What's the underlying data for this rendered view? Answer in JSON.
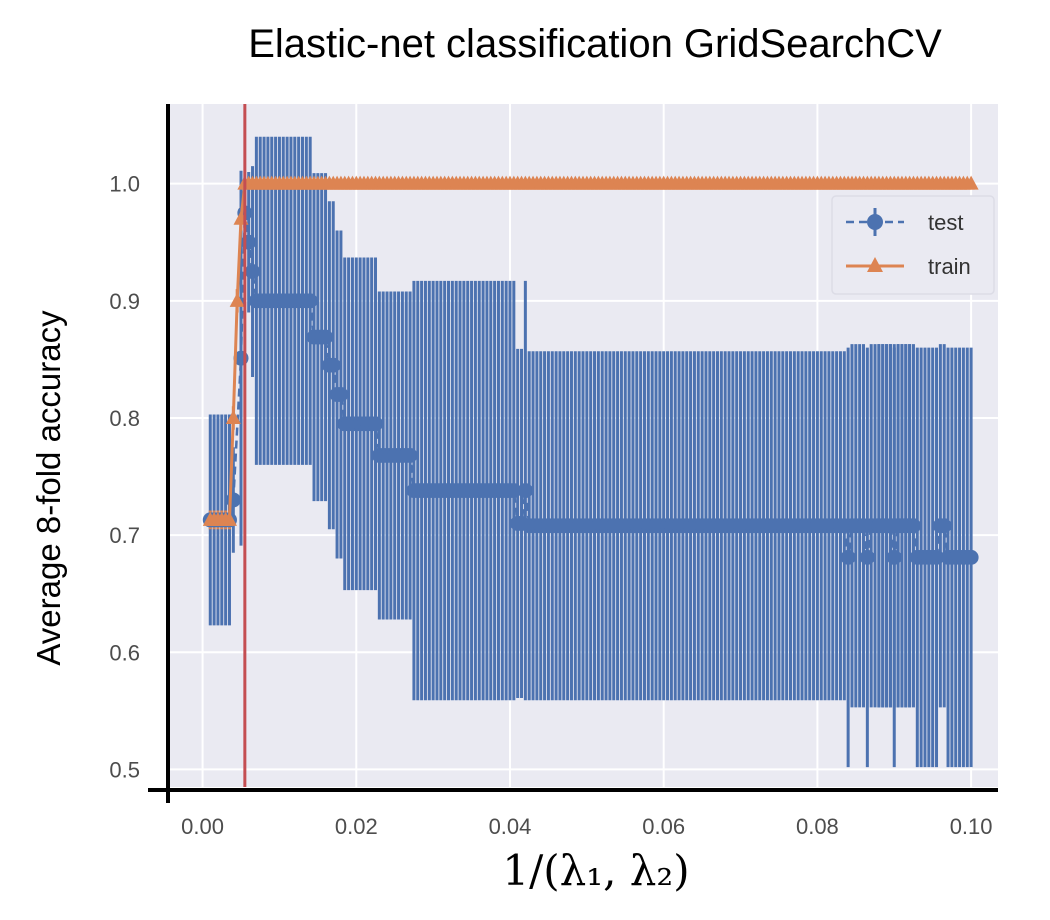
{
  "chart_data": {
    "type": "line",
    "title": "Elastic-net classification GridSearchCV",
    "xlabel": "1/(λ₁, λ₂)",
    "ylabel": "Average 8-fold accuracy",
    "xlim": [
      -0.0045,
      0.1035
    ],
    "ylim": [
      0.485,
      1.068
    ],
    "x_ticks": [
      0.0,
      0.02,
      0.04,
      0.06,
      0.08,
      0.1
    ],
    "x_tick_labels": [
      "0.00",
      "0.02",
      "0.04",
      "0.06",
      "0.08",
      "0.10"
    ],
    "y_ticks": [
      0.5,
      0.6,
      0.7,
      0.8,
      0.9,
      1.0
    ],
    "y_tick_labels": [
      "0.5",
      "0.6",
      "0.7",
      "0.8",
      "0.9",
      "1.0"
    ],
    "grid": true,
    "legend": "upper right",
    "vertical_line": {
      "x": 0.0055,
      "color": "#c44e52"
    },
    "colors": {
      "background": "#eaeaf2",
      "grid": "#ffffff",
      "test": "#4c72b0",
      "train": "#dd8452"
    },
    "test_segments": [
      {
        "x_start": 0.001,
        "x_end": 0.0035,
        "mean": 0.713,
        "std": 0.09
      },
      {
        "x_start": 0.004,
        "x_end": 0.004,
        "mean": 0.73,
        "std": 0.045
      },
      {
        "x_start": 0.005,
        "x_end": 0.005,
        "mean": 0.851,
        "std": 0.16
      },
      {
        "x_start": 0.0055,
        "x_end": 0.0055,
        "mean": 0.975,
        "std": 0.03
      },
      {
        "x_start": 0.006,
        "x_end": 0.006,
        "mean": 0.95,
        "std": 0.06
      },
      {
        "x_start": 0.0065,
        "x_end": 0.0065,
        "mean": 0.925,
        "std": 0.09
      },
      {
        "x_start": 0.007,
        "x_end": 0.014,
        "mean": 0.9,
        "std": 0.14
      },
      {
        "x_start": 0.0145,
        "x_end": 0.016,
        "mean": 0.869,
        "std": 0.14
      },
      {
        "x_start": 0.0165,
        "x_end": 0.017,
        "mean": 0.845,
        "std": 0.14
      },
      {
        "x_start": 0.0175,
        "x_end": 0.018,
        "mean": 0.82,
        "std": 0.14
      },
      {
        "x_start": 0.0185,
        "x_end": 0.0225,
        "mean": 0.795,
        "std": 0.142
      },
      {
        "x_start": 0.023,
        "x_end": 0.025,
        "mean": 0.768,
        "std": 0.14
      },
      {
        "x_start": 0.0255,
        "x_end": 0.027,
        "mean": 0.768,
        "std": 0.14
      },
      {
        "x_start": 0.0275,
        "x_end": 0.0405,
        "mean": 0.738,
        "std": 0.179
      },
      {
        "x_start": 0.041,
        "x_end": 0.0415,
        "mean": 0.71,
        "std": 0.149
      },
      {
        "x_start": 0.042,
        "x_end": 0.042,
        "mean": 0.738,
        "std": 0.179
      },
      {
        "x_start": 0.0425,
        "x_end": 0.0835,
        "mean": 0.708,
        "std": 0.149
      },
      {
        "x_start": 0.084,
        "x_end": 0.084,
        "mean": 0.681,
        "std": 0.179
      },
      {
        "x_start": 0.0845,
        "x_end": 0.0855,
        "mean": 0.708,
        "std": 0.155
      },
      {
        "x_start": 0.086,
        "x_end": 0.086,
        "mean": 0.708,
        "std": 0.155
      },
      {
        "x_start": 0.0865,
        "x_end": 0.0865,
        "mean": 0.681,
        "std": 0.179
      },
      {
        "x_start": 0.087,
        "x_end": 0.092,
        "mean": 0.708,
        "std": 0.155
      },
      {
        "x_start": 0.088,
        "x_end": 0.088,
        "mean": 0.708,
        "std": 0.155
      },
      {
        "x_start": 0.0885,
        "x_end": 0.0895,
        "mean": 0.708,
        "std": 0.155
      },
      {
        "x_start": 0.09,
        "x_end": 0.09,
        "mean": 0.681,
        "std": 0.179
      },
      {
        "x_start": 0.0905,
        "x_end": 0.0925,
        "mean": 0.708,
        "std": 0.155
      },
      {
        "x_start": 0.093,
        "x_end": 0.0955,
        "mean": 0.681,
        "std": 0.179
      },
      {
        "x_start": 0.096,
        "x_end": 0.0965,
        "mean": 0.708,
        "std": 0.155
      },
      {
        "x_start": 0.097,
        "x_end": 0.1,
        "mean": 0.681,
        "std": 0.179
      }
    ],
    "train_segments": [
      {
        "x_start": 0.001,
        "x_end": 0.0035,
        "mean": 0.713,
        "std": 0.008
      },
      {
        "x_start": 0.004,
        "x_end": 0.004,
        "mean": 0.8,
        "std": 0.01
      },
      {
        "x_start": 0.0045,
        "x_end": 0.0045,
        "mean": 0.9,
        "std": 0.01
      },
      {
        "x_start": 0.005,
        "x_end": 0.005,
        "mean": 0.97,
        "std": 0.01
      },
      {
        "x_start": 0.0055,
        "x_end": 0.1,
        "mean": 1.0,
        "std": 0.0
      }
    ],
    "series": [
      {
        "name": "test"
      },
      {
        "name": "train"
      }
    ],
    "x_step": 0.0005
  }
}
